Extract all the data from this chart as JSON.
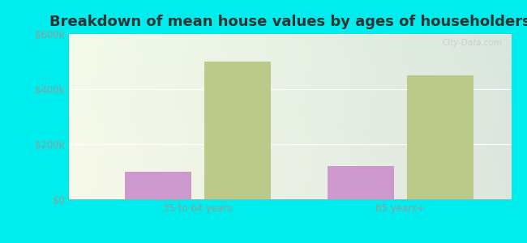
{
  "title": "Breakdown of mean house values by ages of householders",
  "categories": [
    "35 to 64 years",
    "65 years+"
  ],
  "series": {
    "Cibecue": [
      100000,
      122000
    ],
    "Arizona": [
      500000,
      450000
    ]
  },
  "bar_colors": {
    "Cibecue": "#cc99cc",
    "Arizona": "#bbc98a"
  },
  "ylim": [
    0,
    600000
  ],
  "yticks": [
    0,
    200000,
    400000,
    600000
  ],
  "ytick_labels": [
    "$0",
    "$200k",
    "$400k",
    "$600k"
  ],
  "background_color": "#00eded",
  "title_fontsize": 13,
  "tick_fontsize": 8.5,
  "legend_fontsize": 9,
  "bar_width": 0.18,
  "group_centers": [
    0.3,
    0.85
  ]
}
